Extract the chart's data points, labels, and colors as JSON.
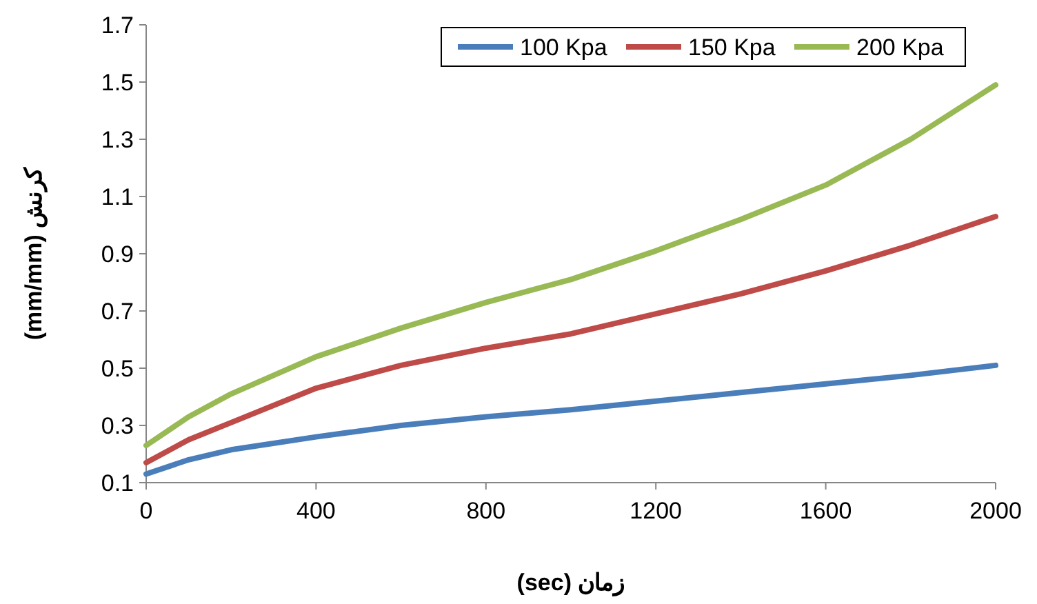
{
  "chart_data": {
    "type": "line",
    "xlabel": "زمان (sec)",
    "ylabel": "کرنش (mm/mm)",
    "x": [
      0,
      100,
      200,
      400,
      600,
      800,
      1000,
      1200,
      1400,
      1600,
      1800,
      2000
    ],
    "series": [
      {
        "name": "100 Kpa",
        "color": "#4a7ebb",
        "values": [
          0.13,
          0.18,
          0.215,
          0.26,
          0.3,
          0.33,
          0.355,
          0.385,
          0.415,
          0.445,
          0.475,
          0.51
        ]
      },
      {
        "name": "150 Kpa",
        "color": "#be4b48",
        "values": [
          0.17,
          0.25,
          0.31,
          0.43,
          0.51,
          0.57,
          0.62,
          0.69,
          0.76,
          0.84,
          0.93,
          1.03
        ]
      },
      {
        "name": "200 Kpa",
        "color": "#98b954",
        "values": [
          0.23,
          0.33,
          0.41,
          0.54,
          0.64,
          0.73,
          0.81,
          0.91,
          1.02,
          1.14,
          1.3,
          1.49
        ]
      }
    ],
    "xlim": [
      0,
      2000
    ],
    "xticks": [
      0,
      400,
      800,
      1200,
      1600,
      2000
    ],
    "ylim": [
      0.1,
      1.7
    ],
    "yticks": [
      0.1,
      0.3,
      0.5,
      0.7,
      0.9,
      1.1,
      1.3,
      1.5,
      1.7
    ],
    "grid": false,
    "legend": "top right",
    "line_style": "solid",
    "marker": "none"
  }
}
